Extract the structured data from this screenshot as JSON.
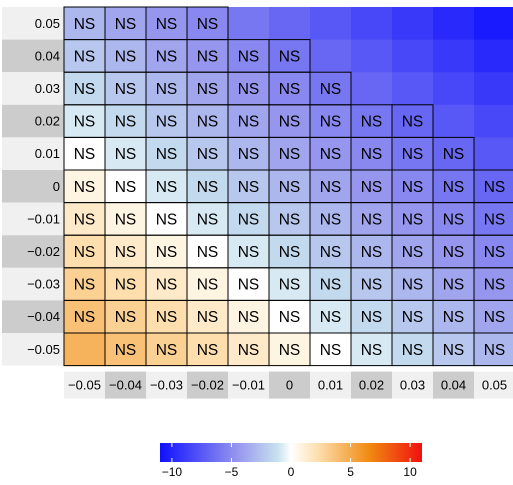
{
  "chart_data": {
    "type": "heatmap",
    "x_tick_labels": [
      "−0.05",
      "−0.04",
      "−0.03",
      "−0.02",
      "−0.01",
      "0",
      "0.01",
      "0.02",
      "0.03",
      "0.04",
      "0.05"
    ],
    "y_tick_labels": [
      "0.05",
      "0.04",
      "0.03",
      "0.02",
      "0.01",
      "0",
      "−0.01",
      "−0.02",
      "−0.03",
      "−0.04",
      "−0.05"
    ],
    "cell_label": "NS",
    "values": [
      [
        -3.0,
        -3.8,
        -4.5,
        -5.2,
        -6.0,
        -6.8,
        -7.5,
        -8.3,
        -9.0,
        -9.8,
        -10.5
      ],
      [
        -2.3,
        -3.0,
        -3.8,
        -4.5,
        -5.2,
        -6.0,
        -6.8,
        -7.5,
        -8.3,
        -9.0,
        -9.8
      ],
      [
        -1.5,
        -2.3,
        -3.0,
        -3.8,
        -4.5,
        -5.2,
        -6.0,
        -6.8,
        -7.5,
        -8.3,
        -9.0
      ],
      [
        -0.8,
        -1.5,
        -2.3,
        -3.0,
        -3.8,
        -4.5,
        -5.2,
        -6.0,
        -6.8,
        -7.5,
        -8.3
      ],
      [
        0.0,
        -0.8,
        -1.5,
        -2.3,
        -3.0,
        -3.8,
        -4.5,
        -5.2,
        -6.0,
        -6.8,
        -7.5
      ],
      [
        0.8,
        0.0,
        -0.8,
        -1.5,
        -2.3,
        -3.0,
        -3.8,
        -4.5,
        -5.2,
        -6.0,
        -6.8
      ],
      [
        1.5,
        0.8,
        0.0,
        -0.8,
        -1.5,
        -2.3,
        -3.0,
        -3.8,
        -4.5,
        -5.2,
        -6.0
      ],
      [
        2.3,
        1.5,
        0.8,
        0.0,
        -0.8,
        -1.5,
        -2.3,
        -3.0,
        -3.8,
        -4.5,
        -5.2
      ],
      [
        3.0,
        2.3,
        1.5,
        0.8,
        0.0,
        -0.8,
        -1.5,
        -2.3,
        -3.0,
        -3.8,
        -4.5
      ],
      [
        3.8,
        3.0,
        2.3,
        1.5,
        0.8,
        0.0,
        -0.8,
        -1.5,
        -2.3,
        -3.0,
        -3.8
      ],
      [
        4.5,
        3.8,
        3.0,
        2.3,
        1.5,
        0.8,
        0.0,
        -0.8,
        -1.5,
        -2.3,
        -3.0
      ]
    ],
    "labeled": [
      [
        1,
        1,
        1,
        1,
        0,
        0,
        0,
        0,
        0,
        0,
        0
      ],
      [
        1,
        1,
        1,
        1,
        1,
        1,
        0,
        0,
        0,
        0,
        0
      ],
      [
        1,
        1,
        1,
        1,
        1,
        1,
        1,
        0,
        0,
        0,
        0
      ],
      [
        1,
        1,
        1,
        1,
        1,
        1,
        1,
        1,
        1,
        0,
        0
      ],
      [
        1,
        1,
        1,
        1,
        1,
        1,
        1,
        1,
        1,
        1,
        0
      ],
      [
        1,
        1,
        1,
        1,
        1,
        1,
        1,
        1,
        1,
        1,
        1
      ],
      [
        1,
        1,
        1,
        1,
        1,
        1,
        1,
        1,
        1,
        1,
        1
      ],
      [
        1,
        1,
        1,
        1,
        1,
        1,
        1,
        1,
        1,
        1,
        1
      ],
      [
        1,
        1,
        1,
        1,
        1,
        1,
        1,
        1,
        1,
        1,
        1
      ],
      [
        1,
        1,
        1,
        1,
        1,
        1,
        1,
        1,
        1,
        1,
        1
      ],
      [
        0,
        1,
        1,
        1,
        1,
        1,
        1,
        1,
        1,
        1,
        1
      ]
    ],
    "bordered": [
      [
        1,
        1,
        1,
        1,
        0,
        0,
        0,
        0,
        0,
        0,
        0
      ],
      [
        1,
        1,
        1,
        1,
        1,
        1,
        0,
        0,
        0,
        0,
        0
      ],
      [
        1,
        1,
        1,
        1,
        1,
        1,
        1,
        0,
        0,
        0,
        0
      ],
      [
        1,
        1,
        1,
        1,
        1,
        1,
        1,
        1,
        1,
        0,
        0
      ],
      [
        1,
        1,
        1,
        1,
        1,
        1,
        1,
        1,
        1,
        1,
        0
      ],
      [
        1,
        1,
        1,
        1,
        1,
        1,
        1,
        1,
        1,
        1,
        1
      ],
      [
        1,
        1,
        1,
        1,
        1,
        1,
        1,
        1,
        1,
        1,
        1
      ],
      [
        1,
        1,
        1,
        1,
        1,
        1,
        1,
        1,
        1,
        1,
        1
      ],
      [
        1,
        1,
        1,
        1,
        1,
        1,
        1,
        1,
        1,
        1,
        1
      ],
      [
        1,
        1,
        1,
        1,
        1,
        1,
        1,
        1,
        1,
        1,
        1
      ],
      [
        1,
        1,
        1,
        1,
        1,
        1,
        1,
        1,
        1,
        1,
        1
      ]
    ],
    "colorbar": {
      "range": [
        -11,
        11
      ],
      "ticks": [
        -10,
        -5,
        0,
        5,
        10
      ],
      "tick_labels": [
        "−10",
        "−5",
        "0",
        "5",
        "10"
      ],
      "colors": {
        "min": "#1010ff",
        "low": "#9898ee",
        "mid_low": "#c8e2ee",
        "center": "#ffffff",
        "mid_high": "#fde0b0",
        "high": "#f08a10",
        "max": "#f01010"
      }
    },
    "legend_position": "bottom"
  }
}
